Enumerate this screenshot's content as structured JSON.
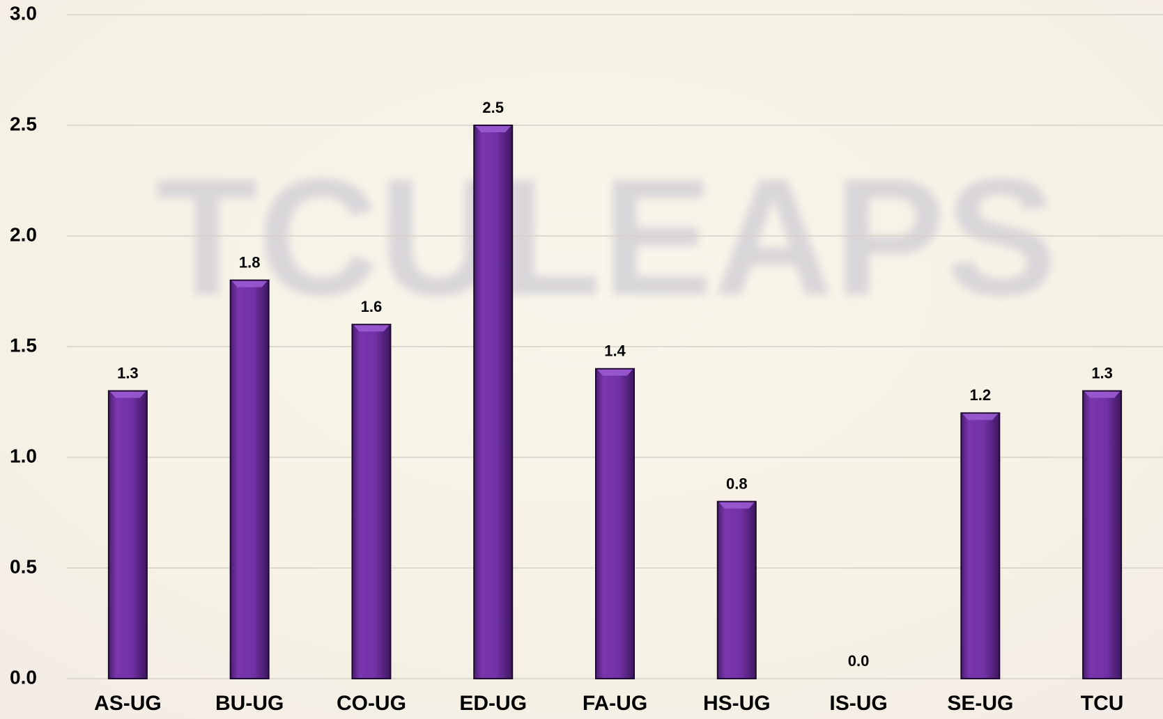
{
  "chart_data": {
    "type": "bar",
    "watermark": "TCULEAPS",
    "categories": [
      "AS-UG",
      "BU-UG",
      "CO-UG",
      "ED-UG",
      "FA-UG",
      "HS-UG",
      "IS-UG",
      "SE-UG",
      "TCU"
    ],
    "values": [
      1.3,
      1.8,
      1.6,
      2.5,
      1.4,
      0.8,
      0,
      1.2,
      1.3
    ],
    "value_labels": [
      "1.3",
      "1.8",
      "1.6",
      "2.5",
      "1.4",
      "0.8",
      "0.0",
      "1.2",
      "1.3"
    ],
    "color": "#7030a0",
    "ylim": [
      0,
      3
    ],
    "yticks": [
      {
        "value": 0,
        "label": "0.0"
      },
      {
        "value": 0.5,
        "label": "0.5"
      },
      {
        "value": 1,
        "label": "1.0"
      },
      {
        "value": 1.5,
        "label": "1.5"
      },
      {
        "value": 2,
        "label": "2.0"
      },
      {
        "value": 2.5,
        "label": "2.5"
      },
      {
        "value": 3,
        "label": "3.0"
      }
    ],
    "grid": true
  }
}
